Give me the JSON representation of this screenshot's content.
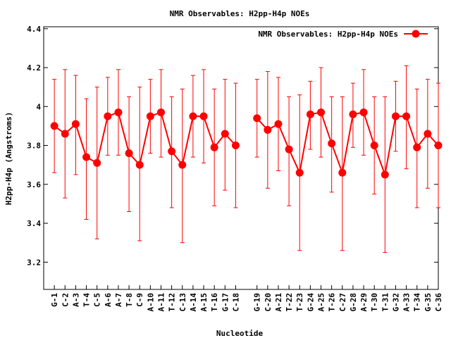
{
  "chart_data": {
    "type": "line",
    "title": "NMR Observables: H2pp-H4p NOEs",
    "xlabel": "Nucleotide",
    "ylabel": "H2pp-H4p (Angstroms)",
    "ylim": [
      3.06,
      4.41
    ],
    "y_ticks": [
      3.2,
      3.4,
      3.6,
      3.8,
      4,
      4.2,
      4.4
    ],
    "y_tick_labels": [
      "3.2",
      "3.4",
      "3.6",
      "3.8",
      "4",
      "4.2",
      "4.4"
    ],
    "xlim": [
      0,
      37
    ],
    "grid": false,
    "legend_position": "top-right",
    "series": [
      {
        "name": "NMR Observables: H2pp-H4p NOEs",
        "color": "#ff0000",
        "marker": "circle",
        "points": [
          {
            "x": 1,
            "label": "G-1",
            "y": 3.9,
            "low": 3.66,
            "high": 4.14
          },
          {
            "x": 2,
            "label": "C-2",
            "y": 3.86,
            "low": 3.53,
            "high": 4.19
          },
          {
            "x": 3,
            "label": "A-3",
            "y": 3.91,
            "low": 3.65,
            "high": 4.16
          },
          {
            "x": 4,
            "label": "T-4",
            "y": 3.74,
            "low": 3.42,
            "high": 4.04
          },
          {
            "x": 5,
            "label": "C-5",
            "y": 3.71,
            "low": 3.32,
            "high": 4.1
          },
          {
            "x": 6,
            "label": "A-6",
            "y": 3.95,
            "low": 3.75,
            "high": 4.15
          },
          {
            "x": 7,
            "label": "A-7",
            "y": 3.97,
            "low": 3.75,
            "high": 4.19
          },
          {
            "x": 8,
            "label": "T-8",
            "y": 3.76,
            "low": 3.46,
            "high": 4.05
          },
          {
            "x": 9,
            "label": "C-9",
            "y": 3.7,
            "low": 3.31,
            "high": 4.1
          },
          {
            "x": 10,
            "label": "A-10",
            "y": 3.95,
            "low": 3.76,
            "high": 4.14
          },
          {
            "x": 11,
            "label": "A-11",
            "y": 3.97,
            "low": 3.74,
            "high": 4.19
          },
          {
            "x": 12,
            "label": "T-12",
            "y": 3.77,
            "low": 3.48,
            "high": 4.05
          },
          {
            "x": 13,
            "label": "C-13",
            "y": 3.7,
            "low": 3.3,
            "high": 4.09
          },
          {
            "x": 14,
            "label": "A-14",
            "y": 3.95,
            "low": 3.74,
            "high": 4.16
          },
          {
            "x": 15,
            "label": "A-15",
            "y": 3.95,
            "low": 3.71,
            "high": 4.19
          },
          {
            "x": 16,
            "label": "T-16",
            "y": 3.79,
            "low": 3.49,
            "high": 4.09
          },
          {
            "x": 17,
            "label": "G-17",
            "y": 3.86,
            "low": 3.57,
            "high": 4.14
          },
          {
            "x": 18,
            "label": "C-18",
            "y": 3.8,
            "low": 3.48,
            "high": 4.12
          },
          {
            "x": 20,
            "label": "G-19",
            "y": 3.94,
            "low": 3.74,
            "high": 4.14
          },
          {
            "x": 21,
            "label": "C-20",
            "y": 3.88,
            "low": 3.58,
            "high": 4.18
          },
          {
            "x": 22,
            "label": "A-21",
            "y": 3.91,
            "low": 3.67,
            "high": 4.15
          },
          {
            "x": 23,
            "label": "T-22",
            "y": 3.78,
            "low": 3.49,
            "high": 4.05
          },
          {
            "x": 24,
            "label": "T-23",
            "y": 3.66,
            "low": 3.26,
            "high": 4.06
          },
          {
            "x": 25,
            "label": "G-24",
            "y": 3.96,
            "low": 3.78,
            "high": 4.13
          },
          {
            "x": 26,
            "label": "A-25",
            "y": 3.97,
            "low": 3.74,
            "high": 4.2
          },
          {
            "x": 27,
            "label": "T-26",
            "y": 3.81,
            "low": 3.56,
            "high": 4.05
          },
          {
            "x": 28,
            "label": "C-27",
            "y": 3.66,
            "low": 3.26,
            "high": 4.05
          },
          {
            "x": 29,
            "label": "G-28",
            "y": 3.96,
            "low": 3.79,
            "high": 4.12
          },
          {
            "x": 30,
            "label": "A-29",
            "y": 3.97,
            "low": 3.75,
            "high": 4.19
          },
          {
            "x": 31,
            "label": "T-30",
            "y": 3.8,
            "low": 3.55,
            "high": 4.05
          },
          {
            "x": 32,
            "label": "T-31",
            "y": 3.65,
            "low": 3.25,
            "high": 4.05
          },
          {
            "x": 33,
            "label": "G-32",
            "y": 3.95,
            "low": 3.77,
            "high": 4.13
          },
          {
            "x": 34,
            "label": "A-33",
            "y": 3.95,
            "low": 3.68,
            "high": 4.21
          },
          {
            "x": 35,
            "label": "T-34",
            "y": 3.79,
            "low": 3.48,
            "high": 4.09
          },
          {
            "x": 36,
            "label": "G-35",
            "y": 3.86,
            "low": 3.58,
            "high": 4.14
          },
          {
            "x": 37,
            "label": "C-36",
            "y": 3.8,
            "low": 3.48,
            "high": 4.12
          }
        ]
      }
    ]
  }
}
